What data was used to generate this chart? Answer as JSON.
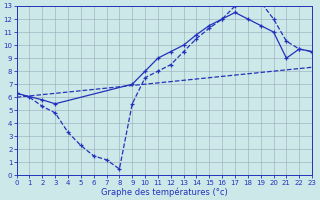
{
  "xlabel": "Graphe des températures (°c)",
  "xlim": [
    0,
    23
  ],
  "ylim": [
    0,
    13
  ],
  "xticks": [
    0,
    1,
    2,
    3,
    4,
    5,
    6,
    7,
    8,
    9,
    10,
    11,
    12,
    13,
    14,
    15,
    16,
    17,
    18,
    19,
    20,
    21,
    22,
    23
  ],
  "yticks": [
    0,
    1,
    2,
    3,
    4,
    5,
    6,
    7,
    8,
    9,
    10,
    11,
    12,
    13
  ],
  "background_color": "#cce8e8",
  "line_color": "#2233bb",
  "grid_color": "#99aabb",
  "curve1_x": [
    0,
    1,
    2,
    3,
    4,
    5,
    6,
    7,
    8,
    9,
    10,
    11,
    12,
    13,
    14,
    15,
    16,
    17,
    18,
    19,
    20,
    21,
    22,
    23
  ],
  "curve1_y": [
    6.3,
    6.0,
    5.3,
    4.8,
    3.3,
    2.3,
    1.5,
    1.2,
    0.5,
    5.5,
    7.5,
    8.0,
    8.5,
    9.5,
    10.5,
    11.3,
    12.0,
    13.0,
    13.3,
    13.3,
    12.0,
    10.3,
    9.7,
    9.5
  ],
  "curve2_x": [
    0,
    2,
    3,
    9,
    10,
    11,
    12,
    13,
    14,
    15,
    16,
    17,
    18,
    19,
    20,
    21,
    22,
    23
  ],
  "curve2_y": [
    6.3,
    5.8,
    5.5,
    7.0,
    8.0,
    9.0,
    9.5,
    10.0,
    10.8,
    11.5,
    12.0,
    12.5,
    12.0,
    11.5,
    11.0,
    9.0,
    9.7,
    9.5
  ],
  "curve3_x": [
    0,
    23
  ],
  "curve3_y": [
    6.0,
    8.3
  ]
}
